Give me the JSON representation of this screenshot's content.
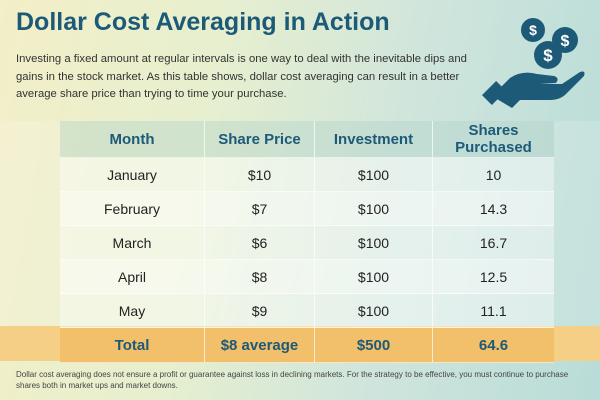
{
  "title": "Dollar Cost Averaging in Action",
  "intro": "Investing a fixed amount at regular intervals is one way to deal with the inevitable dips and gains in the stock market. As this table shows, dollar cost averaging can result in a better average share price than trying to time your purchase.",
  "colors": {
    "title": "#1d5a78",
    "total_row": "#f2bf6a"
  },
  "table": {
    "headers": [
      "Month",
      "Share Price",
      "Investment",
      "Shares Purchased"
    ],
    "rows": [
      [
        "January",
        "$10",
        "$100",
        "10"
      ],
      [
        "February",
        "$7",
        "$100",
        "14.3"
      ],
      [
        "March",
        "$6",
        "$100",
        "16.7"
      ],
      [
        "April",
        "$8",
        "$100",
        "12.5"
      ],
      [
        "May",
        "$9",
        "$100",
        "11.1"
      ]
    ],
    "total": [
      "Total",
      "$8 average",
      "$500",
      "64.6"
    ]
  },
  "footnote": "Dollar cost averaging does not ensure a profit or guarantee against loss in declining markets. For the strategy to be effective, you must continue to purchase shares both in market ups and market downs."
}
